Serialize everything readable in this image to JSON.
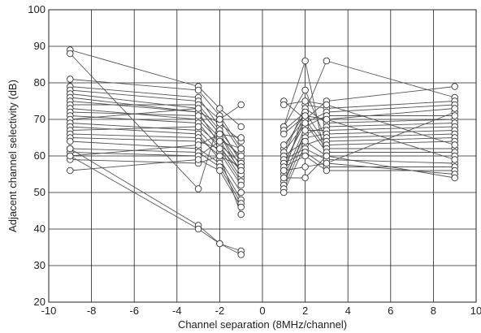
{
  "chart_data": {
    "type": "line",
    "title": "",
    "xlabel": "Channel separation (8MHz/channel)",
    "ylabel": "Adjacent channel selectivity (dB)",
    "xlim": [
      -10,
      10
    ],
    "ylim": [
      20,
      100
    ],
    "xticks": [
      -10,
      -8,
      -6,
      -4,
      -2,
      0,
      2,
      4,
      6,
      8,
      10
    ],
    "yticks": [
      20,
      30,
      40,
      50,
      60,
      70,
      80,
      90,
      100
    ],
    "grid": true,
    "marker": "open-circle",
    "colors": {
      "line": "#555555",
      "marker_edge": "#333333",
      "marker_fill": "#ffffff",
      "grid": "#222222"
    },
    "left_group": {
      "x": [
        -9,
        -3,
        -2,
        -1
      ],
      "series": [
        {
          "values": [
            89,
            79,
            73,
            68
          ]
        },
        {
          "values": [
            81,
            78,
            71,
            62
          ]
        },
        {
          "values": [
            79,
            76,
            68,
            58
          ]
        },
        {
          "values": [
            78,
            75,
            70,
            61
          ]
        },
        {
          "values": [
            77,
            73,
            66,
            57
          ]
        },
        {
          "values": [
            76,
            72,
            69,
            64
          ]
        },
        {
          "values": [
            75,
            72,
            63,
            54
          ]
        },
        {
          "values": [
            74,
            74,
            67,
            59
          ]
        },
        {
          "values": [
            73,
            70,
            64,
            56
          ]
        },
        {
          "values": [
            72,
            71,
            65,
            60
          ]
        },
        {
          "values": [
            71,
            69,
            62,
            53
          ]
        },
        {
          "values": [
            70,
            73,
            66,
            55
          ]
        },
        {
          "values": [
            69,
            67,
            61,
            52
          ]
        },
        {
          "values": [
            68,
            66,
            59,
            50
          ]
        },
        {
          "values": [
            67,
            68,
            63,
            58
          ]
        },
        {
          "values": [
            66,
            65,
            60,
            57
          ]
        },
        {
          "values": [
            65,
            64,
            62,
            56
          ]
        },
        {
          "values": [
            64,
            62,
            58,
            48
          ]
        },
        {
          "values": [
            62,
            61,
            57,
            47
          ]
        },
        {
          "values": [
            61,
            60,
            64,
            62
          ]
        },
        {
          "values": [
            60,
            63,
            66,
            65
          ]
        },
        {
          "values": [
            59,
            58,
            60,
            44
          ]
        },
        {
          "values": [
            56,
            59,
            56,
            46
          ]
        },
        {
          "values": [
            88,
            51,
            70,
            74
          ]
        },
        {
          "values": [
            62,
            41,
            36,
            34
          ]
        },
        {
          "values": [
            60,
            40,
            36,
            33
          ]
        }
      ]
    },
    "right_group": {
      "x": [
        1,
        2,
        3,
        9
      ],
      "series": [
        {
          "values": [
            75,
            70,
            75,
            79
          ]
        },
        {
          "values": [
            68,
            86,
            58,
            72
          ]
        },
        {
          "values": [
            62,
            72,
            86,
            76
          ]
        },
        {
          "values": [
            60,
            74,
            73,
            75
          ]
        },
        {
          "values": [
            58,
            69,
            72,
            74
          ]
        },
        {
          "values": [
            56,
            71,
            70,
            73
          ]
        },
        {
          "values": [
            55,
            73,
            69,
            70
          ]
        },
        {
          "values": [
            54,
            68,
            71,
            71
          ]
        },
        {
          "values": [
            53,
            66,
            68,
            69
          ]
        },
        {
          "values": [
            52,
            67,
            67,
            68
          ]
        },
        {
          "values": [
            51,
            65,
            66,
            67
          ]
        },
        {
          "values": [
            50,
            63,
            65,
            66
          ]
        },
        {
          "values": [
            68,
            78,
            64,
            65
          ]
        },
        {
          "values": [
            67,
            72,
            63,
            64
          ]
        },
        {
          "values": [
            63,
            70,
            62,
            62
          ]
        },
        {
          "values": [
            61,
            69,
            61,
            61
          ]
        },
        {
          "values": [
            60,
            64,
            60,
            60
          ]
        },
        {
          "values": [
            59,
            62,
            59,
            58
          ]
        },
        {
          "values": [
            58,
            61,
            57,
            57
          ]
        },
        {
          "values": [
            57,
            60,
            56,
            56
          ]
        },
        {
          "values": [
            56,
            57,
            58,
            55
          ]
        },
        {
          "values": [
            54,
            54,
            60,
            54
          ]
        },
        {
          "values": [
            74,
            75,
            74,
            63
          ]
        },
        {
          "values": [
            66,
            71,
            70,
            59
          ]
        }
      ]
    }
  }
}
